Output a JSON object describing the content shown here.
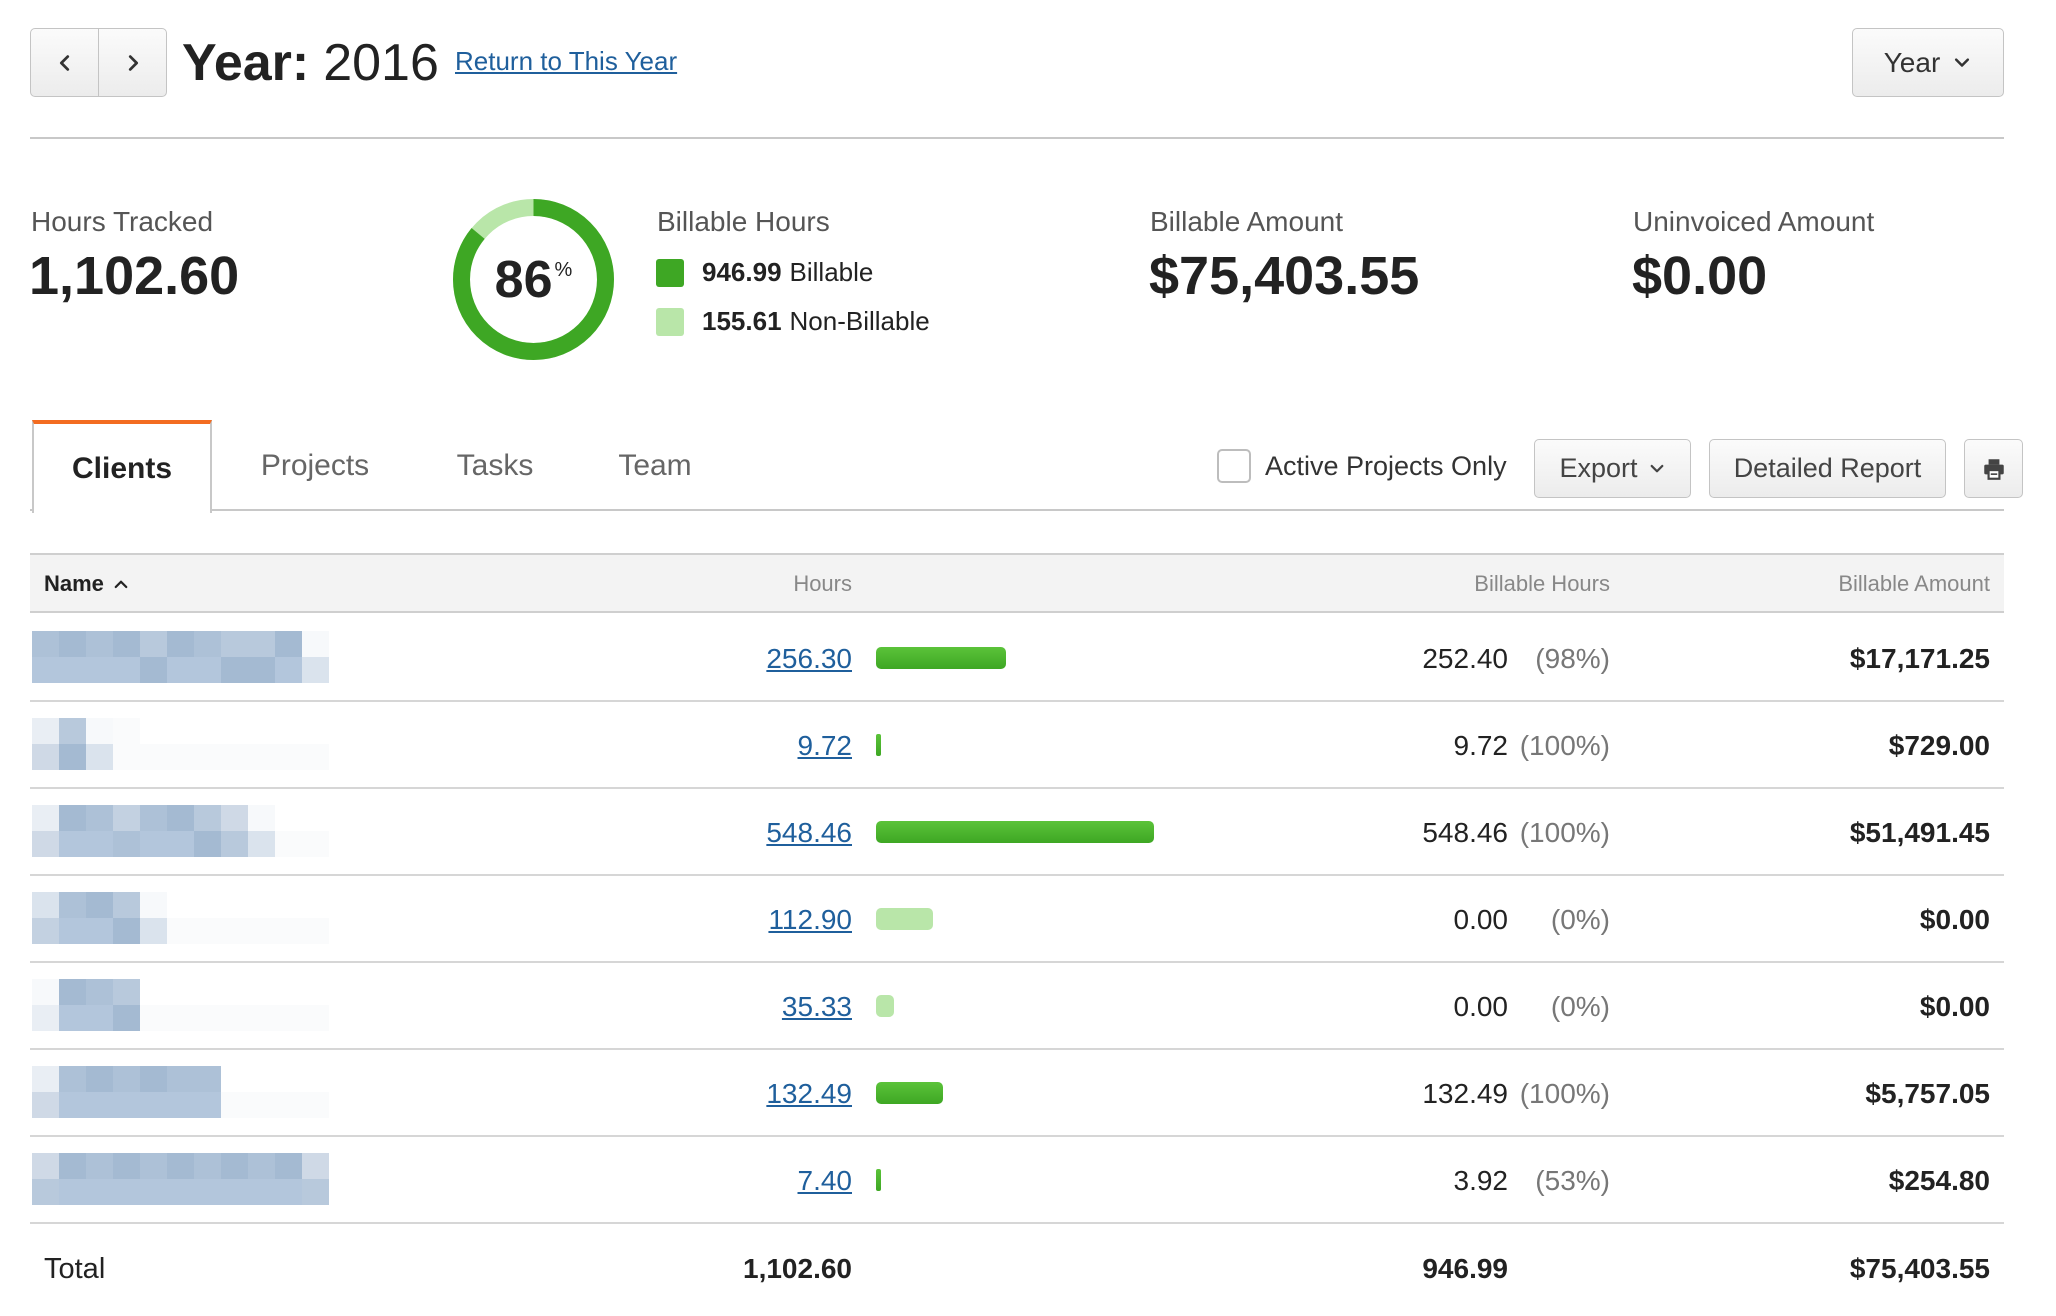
{
  "header": {
    "prev_icon": "chevron-left-icon",
    "next_icon": "chevron-right-icon",
    "title_prefix": "Year:",
    "title_value": "2016",
    "return_link": "Return to This Year",
    "period_select": "Year",
    "period_icon": "chevron-down-icon"
  },
  "summary": {
    "hours_tracked_label": "Hours Tracked",
    "hours_tracked_value": "1,102.60",
    "donut_percent": "86",
    "donut_percent_sign": "%",
    "donut_billable_fraction": 0.86,
    "billable_hours_label": "Billable Hours",
    "billable_hours_value": "946.99",
    "billable_hours_text": "Billable",
    "nonbillable_hours_value": "155.61",
    "nonbillable_hours_text": "Non-Billable",
    "billable_amount_label": "Billable Amount",
    "billable_amount_value": "$75,403.55",
    "uninvoiced_amount_label": "Uninvoiced Amount",
    "uninvoiced_amount_value": "$0.00"
  },
  "colors": {
    "billable": "#3ea724",
    "nonbillable": "#b9e6a9",
    "active_tab_accent": "#f36c21",
    "link": "#1f5f9c"
  },
  "tabs": [
    {
      "label": "Clients",
      "active": true
    },
    {
      "label": "Projects",
      "active": false
    },
    {
      "label": "Tasks",
      "active": false
    },
    {
      "label": "Team",
      "active": false
    }
  ],
  "toolbar": {
    "active_only_label": "Active Projects Only",
    "active_only_checked": false,
    "export_label": "Export",
    "export_icon": "chevron-down-icon",
    "detailed_report_label": "Detailed Report",
    "print_icon": "printer-icon"
  },
  "table": {
    "columns": {
      "name": "Name",
      "name_sort_icon": "chevron-up-icon",
      "hours": "Hours",
      "billable_hours": "Billable Hours",
      "billable_amount": "Billable Amount"
    },
    "rows": [
      {
        "hours": "256.30",
        "hours_num": 256.3,
        "billable_hours": "252.40",
        "billable_pct": "(98%)",
        "billable_num": 252.4,
        "amount": "$17,171.25"
      },
      {
        "hours": "9.72",
        "hours_num": 9.72,
        "billable_hours": "9.72",
        "billable_pct": "(100%)",
        "billable_num": 9.72,
        "amount": "$729.00"
      },
      {
        "hours": "548.46",
        "hours_num": 548.46,
        "billable_hours": "548.46",
        "billable_pct": "(100%)",
        "billable_num": 548.46,
        "amount": "$51,491.45"
      },
      {
        "hours": "112.90",
        "hours_num": 112.9,
        "billable_hours": "0.00",
        "billable_pct": "(0%)",
        "billable_num": 0,
        "amount": "$0.00"
      },
      {
        "hours": "35.33",
        "hours_num": 35.33,
        "billable_hours": "0.00",
        "billable_pct": "(0%)",
        "billable_num": 0,
        "amount": "$0.00"
      },
      {
        "hours": "132.49",
        "hours_num": 132.49,
        "billable_hours": "132.49",
        "billable_pct": "(100%)",
        "billable_num": 132.49,
        "amount": "$5,757.05"
      },
      {
        "hours": "7.40",
        "hours_num": 7.4,
        "billable_hours": "3.92",
        "billable_pct": "(53%)",
        "billable_num": 3.92,
        "amount": "$254.80"
      }
    ],
    "total": {
      "label": "Total",
      "hours": "1,102.60",
      "billable_hours": "946.99",
      "amount": "$75,403.55"
    }
  }
}
